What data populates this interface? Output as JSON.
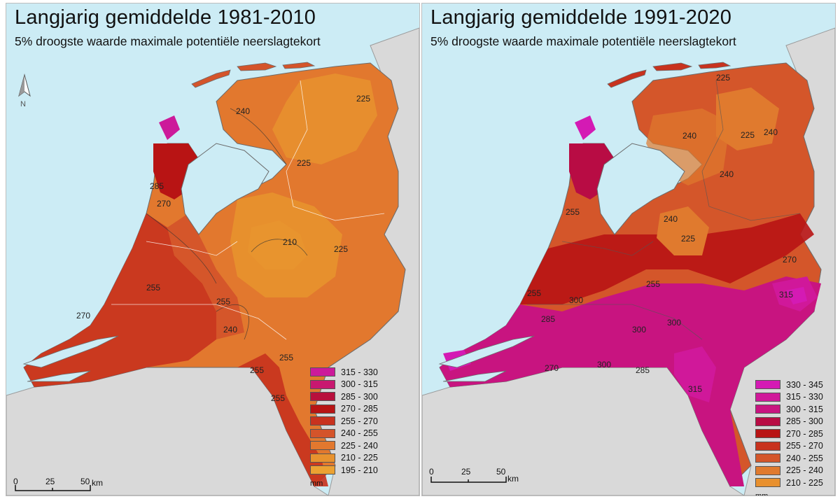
{
  "maps": [
    {
      "title": "Langjarig gemiddelde 1981-2010",
      "subtitle": "5% droogste waarde maximale potentiële neerslagtekort",
      "north_label": "N",
      "scale": {
        "ticks": [
          "0",
          "25",
          "50"
        ],
        "unit": "km"
      },
      "legend": {
        "unit": "mm",
        "items": [
          {
            "label": "315 - 330",
            "color": "#cc1a9a"
          },
          {
            "label": "300 - 315",
            "color": "#c81870"
          },
          {
            "label": "285 - 300",
            "color": "#b80f3c"
          },
          {
            "label": "270 - 285",
            "color": "#b81414"
          },
          {
            "label": "255 - 270",
            "color": "#c8321e"
          },
          {
            "label": "240 - 255",
            "color": "#d4542a"
          },
          {
            "label": "225 - 240",
            "color": "#e2782e"
          },
          {
            "label": "210 - 225",
            "color": "#e8922e"
          },
          {
            "label": "195 - 210",
            "color": "#eca232"
          }
        ]
      },
      "contour_labels": [
        "240",
        "225",
        "225",
        "285",
        "270",
        "210",
        "225",
        "255",
        "255",
        "270",
        "240",
        "255",
        "255",
        "255"
      ]
    },
    {
      "title": "Langjarig gemiddelde 1991-2020",
      "subtitle": "5% droogste waarde maximale potentiële neerslagtekort",
      "scale": {
        "ticks": [
          "0",
          "25",
          "50"
        ],
        "unit": "km"
      },
      "legend": {
        "unit": "mm",
        "items": [
          {
            "label": "330 - 345",
            "color": "#d41ab4"
          },
          {
            "label": "315 - 330",
            "color": "#d0189a"
          },
          {
            "label": "300 - 315",
            "color": "#c81480"
          },
          {
            "label": "285 - 300",
            "color": "#b80c44"
          },
          {
            "label": "270 - 285",
            "color": "#b81414"
          },
          {
            "label": "255 - 270",
            "color": "#c8321e"
          },
          {
            "label": "240 - 255",
            "color": "#d4562a"
          },
          {
            "label": "225 - 240",
            "color": "#e07a2e"
          },
          {
            "label": "210 - 225",
            "color": "#e8902e"
          }
        ]
      },
      "contour_labels": [
        "225",
        "240",
        "225",
        "240",
        "240",
        "255",
        "240",
        "225",
        "255",
        "255",
        "270",
        "285",
        "300",
        "315",
        "300",
        "285",
        "300",
        "315",
        "300",
        "270"
      ]
    }
  ]
}
